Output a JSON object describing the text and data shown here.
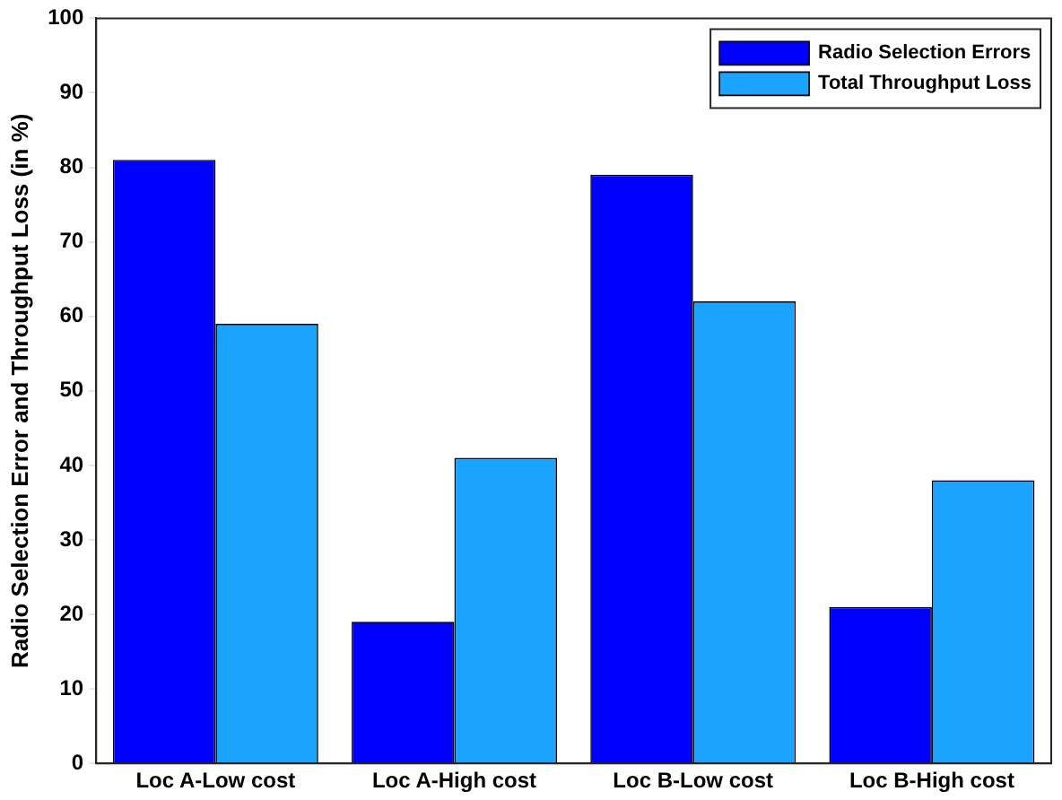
{
  "chart_data": {
    "type": "bar",
    "ylabel": "Radio Selection Error and Throughput Loss (in %)",
    "categories": [
      "Loc A-Low cost",
      "Loc A-High cost",
      "Loc B-Low cost",
      "Loc B-High cost"
    ],
    "series": [
      {
        "name": "Radio Selection Errors",
        "color": "#0000ff",
        "values": [
          81,
          19,
          79,
          21
        ]
      },
      {
        "name": "Total Throughput Loss",
        "color": "#1aa3ff",
        "values": [
          59,
          41,
          62,
          38
        ]
      }
    ],
    "ylim": [
      0,
      100
    ],
    "yticks": [
      0,
      10,
      20,
      30,
      40,
      50,
      60,
      70,
      80,
      90,
      100
    ],
    "grid": false,
    "legend": "top right"
  }
}
